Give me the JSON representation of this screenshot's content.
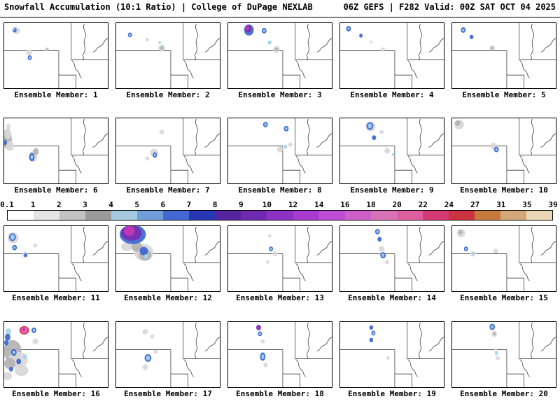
{
  "header": {
    "left": "Snowfall Accumulation (10:1 Ratio) | College of DuPage NEXLAB",
    "right": "06Z GEFS | F282 Valid: 00Z SAT OCT 04 2025"
  },
  "colorbar": {
    "ticks": [
      "0.1",
      "1",
      "2",
      "3",
      "4",
      "5",
      "6",
      "7",
      "8",
      "9",
      "10",
      "12",
      "14",
      "16",
      "18",
      "20",
      "22",
      "24",
      "27",
      "31",
      "35",
      "39"
    ],
    "segment_colors": [
      "#ffffff",
      "#e4e4e4",
      "#c2c2c2",
      "#9b9b9b",
      "#a7c9e2",
      "#6f9ed8",
      "#4468d2",
      "#2736b2",
      "#56249e",
      "#7029b0",
      "#8d31c4",
      "#a73ad2",
      "#bf4cd4",
      "#cf5fc8",
      "#d972b8",
      "#dd5f9e",
      "#d43a74",
      "#cb3340",
      "#c67a3e",
      "#d4a878",
      "#e9d8b8"
    ]
  },
  "palette": {
    "g1": "#d8d8d8",
    "g2": "#b2b2b2",
    "g3": "#8c8c8c",
    "lb": "#a8d4ee",
    "b": "#3a66d0",
    "db": "#2133a8",
    "p": "#7b2db2",
    "m": "#c637b4",
    "pk": "#e86eb4",
    "r": "#d02838"
  },
  "map": {
    "border_color": "#3c3c3c",
    "background": "#ffffff"
  },
  "rows": [
    [
      1,
      5
    ],
    [
      6,
      10
    ],
    [
      11,
      15
    ],
    [
      16,
      20
    ]
  ],
  "panels": [
    {
      "label": "Ensemble Member: 1",
      "blobs": [
        [
          18,
          11,
          5,
          5,
          "g1"
        ],
        [
          15,
          10,
          3,
          3.5,
          "b"
        ],
        [
          14,
          9,
          1.4,
          1.8,
          "lb"
        ],
        [
          36,
          43,
          4,
          4.5,
          "g1"
        ],
        [
          37,
          50,
          3,
          3.5,
          "b"
        ],
        [
          37,
          50,
          1.4,
          1.8,
          "lb"
        ],
        [
          62,
          38,
          3,
          3,
          "g1"
        ],
        [
          62,
          38,
          1.5,
          1.5,
          "g2"
        ]
      ]
    },
    {
      "label": "Ensemble Member: 2",
      "blobs": [
        [
          20,
          17,
          3,
          3.5,
          "b"
        ],
        [
          20,
          17,
          1.3,
          1.6,
          "lb"
        ],
        [
          45,
          24,
          2.5,
          2.5,
          "g1"
        ],
        [
          66,
          36,
          5,
          5,
          "g1"
        ],
        [
          66,
          36,
          2.5,
          2.5,
          "g2"
        ],
        [
          63,
          28,
          2,
          2,
          "lb"
        ]
      ]
    },
    {
      "label": "Ensemble Member: 3",
      "blobs": [
        [
          30,
          10,
          7,
          8,
          "b"
        ],
        [
          29,
          8,
          4.5,
          5.5,
          "p"
        ],
        [
          28,
          7,
          2.5,
          3.5,
          "m"
        ],
        [
          52,
          11,
          3.5,
          4,
          "b"
        ],
        [
          52,
          11,
          1.6,
          2,
          "lb"
        ],
        [
          60,
          28,
          3,
          3,
          "lb"
        ],
        [
          70,
          38,
          5,
          5,
          "g1"
        ],
        [
          70,
          38,
          2.5,
          2.5,
          "g2"
        ]
      ]
    },
    {
      "label": "Ensemble Member: 4",
      "blobs": [
        [
          12,
          8,
          3.5,
          4,
          "b"
        ],
        [
          12,
          8,
          1.5,
          2,
          "lb"
        ],
        [
          30,
          18,
          2.5,
          3,
          "b"
        ],
        [
          45,
          27,
          2,
          2,
          "g1"
        ],
        [
          62,
          38,
          3,
          3,
          "g1"
        ]
      ]
    },
    {
      "label": "Ensemble Member: 5",
      "blobs": [
        [
          16,
          10,
          3.5,
          4,
          "b"
        ],
        [
          16,
          10,
          1.6,
          2,
          "lb"
        ],
        [
          28,
          20,
          2.8,
          3.2,
          "b"
        ],
        [
          58,
          36,
          4,
          4,
          "g1"
        ],
        [
          58,
          36,
          2,
          2,
          "g2"
        ]
      ]
    },
    {
      "label": "Ensemble Member: 6",
      "blobs": [
        [
          4,
          30,
          7,
          14,
          "g2"
        ],
        [
          5,
          22,
          5,
          8,
          "g1"
        ],
        [
          8,
          40,
          6,
          7,
          "g1"
        ],
        [
          6,
          12,
          3,
          4,
          "g1"
        ],
        [
          2,
          35,
          2,
          4,
          "b"
        ],
        [
          42,
          55,
          6,
          8,
          "g1"
        ],
        [
          46,
          48,
          4,
          5,
          "g2"
        ],
        [
          40,
          56,
          4,
          6,
          "b"
        ],
        [
          40,
          56,
          2,
          3,
          "lb"
        ]
      ]
    },
    {
      "label": "Ensemble Member: 7",
      "blobs": [
        [
          66,
          20,
          3.5,
          3.5,
          "g1"
        ],
        [
          55,
          50,
          6,
          6,
          "g1"
        ],
        [
          56,
          53,
          3,
          4,
          "b"
        ],
        [
          56,
          53,
          1.4,
          2,
          "lb"
        ],
        [
          45,
          58,
          3,
          3,
          "g1"
        ]
      ]
    },
    {
      "label": "Ensemble Member: 8",
      "blobs": [
        [
          54,
          9,
          3.5,
          4,
          "b"
        ],
        [
          54,
          9,
          1.6,
          2,
          "lb"
        ],
        [
          84,
          15,
          3.5,
          4,
          "b"
        ],
        [
          84,
          15,
          1.6,
          2,
          "lb"
        ],
        [
          75,
          45,
          4.5,
          4.5,
          "g1"
        ],
        [
          83,
          41,
          2.5,
          3,
          "lb"
        ],
        [
          90,
          38,
          3,
          3,
          "g1"
        ]
      ]
    },
    {
      "label": "Ensemble Member: 9",
      "blobs": [
        [
          44,
          12,
          7,
          7,
          "g1"
        ],
        [
          43,
          11,
          5,
          5.5,
          "b"
        ],
        [
          43,
          11,
          3,
          3.5,
          "lb"
        ],
        [
          49,
          28,
          3,
          3.5,
          "b"
        ],
        [
          60,
          20,
          3,
          3,
          "g1"
        ],
        [
          68,
          47,
          4,
          4,
          "g1"
        ],
        [
          77,
          52,
          2,
          2.5,
          "lb"
        ]
      ]
    },
    {
      "label": "Ensemble Member: 10",
      "blobs": [
        [
          10,
          9,
          7,
          7,
          "g1"
        ],
        [
          8,
          7,
          4,
          4,
          "g2"
        ],
        [
          60,
          40,
          4.5,
          5,
          "g1"
        ],
        [
          64,
          45,
          3.5,
          4,
          "b"
        ],
        [
          64,
          45,
          1.6,
          2,
          "lb"
        ]
      ]
    },
    {
      "label": "Ensemble Member: 11",
      "blobs": [
        [
          13,
          17,
          8,
          8,
          "g1"
        ],
        [
          12,
          16,
          5,
          5.5,
          "b"
        ],
        [
          12,
          16,
          3.2,
          3.8,
          "lb"
        ],
        [
          15,
          31,
          3.5,
          4,
          "b"
        ],
        [
          15,
          31,
          1.5,
          2,
          "lb"
        ],
        [
          30,
          41,
          4,
          4,
          "g1"
        ],
        [
          31,
          42,
          2.5,
          3,
          "b"
        ],
        [
          45,
          28,
          3,
          3,
          "g1"
        ]
      ]
    },
    {
      "label": "Ensemble Member: 12",
      "blobs": [
        [
          15,
          30,
          8,
          6,
          "g1"
        ],
        [
          40,
          38,
          14,
          12,
          "g1"
        ],
        [
          42,
          42,
          9,
          8,
          "g2"
        ],
        [
          30,
          30,
          8,
          7,
          "g2"
        ],
        [
          24,
          12,
          19,
          14,
          "b"
        ],
        [
          22,
          10,
          15,
          11,
          "p"
        ],
        [
          19,
          7,
          8,
          7,
          "m"
        ],
        [
          40,
          36,
          6,
          6,
          "b"
        ],
        [
          43,
          44,
          3,
          3.5,
          "lb"
        ]
      ]
    },
    {
      "label": "Ensemble Member: 13",
      "blobs": [
        [
          60,
          14,
          2.5,
          2.5,
          "g1"
        ],
        [
          62,
          33,
          3,
          3.5,
          "b"
        ],
        [
          62,
          33,
          1.4,
          1.8,
          "lb"
        ],
        [
          68,
          40,
          3.5,
          3.5,
          "g1"
        ],
        [
          57,
          52,
          2.5,
          2.5,
          "g1"
        ]
      ]
    },
    {
      "label": "Ensemble Member: 14",
      "blobs": [
        [
          54,
          8,
          3.5,
          4,
          "b"
        ],
        [
          54,
          8,
          1.6,
          2,
          "lb"
        ],
        [
          57,
          19,
          3,
          3.5,
          "b"
        ],
        [
          60,
          33,
          4,
          4.5,
          "g1"
        ],
        [
          62,
          42,
          4,
          4.5,
          "b"
        ],
        [
          62,
          42,
          2,
          2.5,
          "lb"
        ],
        [
          68,
          52,
          3,
          3,
          "g1"
        ]
      ]
    },
    {
      "label": "Ensemble Member: 15",
      "blobs": [
        [
          13,
          10,
          6,
          6,
          "g1"
        ],
        [
          12,
          9,
          3,
          3,
          "g2"
        ],
        [
          20,
          33,
          3,
          3.5,
          "b"
        ],
        [
          20,
          33,
          1.3,
          1.6,
          "lb"
        ],
        [
          30,
          40,
          4,
          4,
          "g1"
        ],
        [
          30,
          40,
          1.8,
          2.2,
          "lb"
        ],
        [
          63,
          36,
          3.5,
          3.5,
          "g1"
        ]
      ]
    },
    {
      "label": "Ensemble Member: 16",
      "blobs": [
        [
          12,
          42,
          13,
          16,
          "g2"
        ],
        [
          20,
          55,
          14,
          12,
          "g1"
        ],
        [
          8,
          60,
          8,
          8,
          "g2"
        ],
        [
          25,
          70,
          10,
          8,
          "g1"
        ],
        [
          5,
          78,
          6,
          6,
          "g1"
        ],
        [
          45,
          28,
          4,
          4,
          "g1"
        ],
        [
          6,
          14,
          4,
          5,
          "lb"
        ],
        [
          5,
          22,
          4,
          5,
          "b"
        ],
        [
          3,
          30,
          3,
          4,
          "b"
        ],
        [
          14,
          44,
          4,
          5,
          "b"
        ],
        [
          14,
          44,
          2,
          2.5,
          "lb"
        ],
        [
          21,
          57,
          3.5,
          4,
          "b"
        ],
        [
          30,
          50,
          3,
          3.5,
          "lb"
        ],
        [
          10,
          68,
          3,
          3.5,
          "b"
        ],
        [
          29,
          12,
          7,
          6,
          "r"
        ],
        [
          29,
          12,
          5,
          4.5,
          "pk"
        ],
        [
          28,
          11,
          2.8,
          2.5,
          "m"
        ],
        [
          43,
          12,
          3.5,
          4,
          "b"
        ],
        [
          43,
          12,
          1.6,
          2,
          "lb"
        ]
      ]
    },
    {
      "label": "Ensemble Member: 17",
      "blobs": [
        [
          42,
          14,
          4,
          4,
          "g1"
        ],
        [
          52,
          21,
          3,
          3,
          "g1"
        ],
        [
          57,
          43,
          3,
          3,
          "g1"
        ],
        [
          46,
          52,
          5,
          5.5,
          "b"
        ],
        [
          46,
          52,
          3,
          3.5,
          "lb"
        ],
        [
          42,
          65,
          4,
          4,
          "g1"
        ]
      ]
    },
    {
      "label": "Ensemble Member: 18",
      "blobs": [
        [
          44,
          8,
          3.5,
          4,
          "p"
        ],
        [
          46,
          17,
          3,
          3.5,
          "b"
        ],
        [
          46,
          17,
          1.4,
          1.8,
          "lb"
        ],
        [
          50,
          28,
          3,
          3,
          "g1"
        ],
        [
          50,
          50,
          4,
          6,
          "b"
        ],
        [
          50,
          50,
          2,
          3.5,
          "lb"
        ],
        [
          54,
          62,
          3,
          3.5,
          "g1"
        ]
      ]
    },
    {
      "label": "Ensemble Member: 19",
      "blobs": [
        [
          45,
          8,
          2.8,
          3.2,
          "b"
        ],
        [
          48,
          16,
          3,
          3.5,
          "b"
        ],
        [
          48,
          16,
          1.4,
          1.8,
          "lb"
        ],
        [
          45,
          26,
          2.8,
          3.2,
          "b"
        ],
        [
          69,
          52,
          2.5,
          2.5,
          "g1"
        ]
      ]
    },
    {
      "label": "Ensemble Member: 20",
      "blobs": [
        [
          58,
          7,
          4,
          4.5,
          "b"
        ],
        [
          58,
          7,
          2,
          2.5,
          "lb"
        ],
        [
          61,
          17,
          4,
          4.5,
          "g1"
        ],
        [
          61,
          17,
          2,
          2.5,
          "g2"
        ],
        [
          63,
          40,
          2,
          2,
          "g1"
        ],
        [
          64,
          45,
          2.5,
          3,
          "lb"
        ],
        [
          66,
          52,
          3,
          3,
          "g1"
        ]
      ]
    }
  ]
}
